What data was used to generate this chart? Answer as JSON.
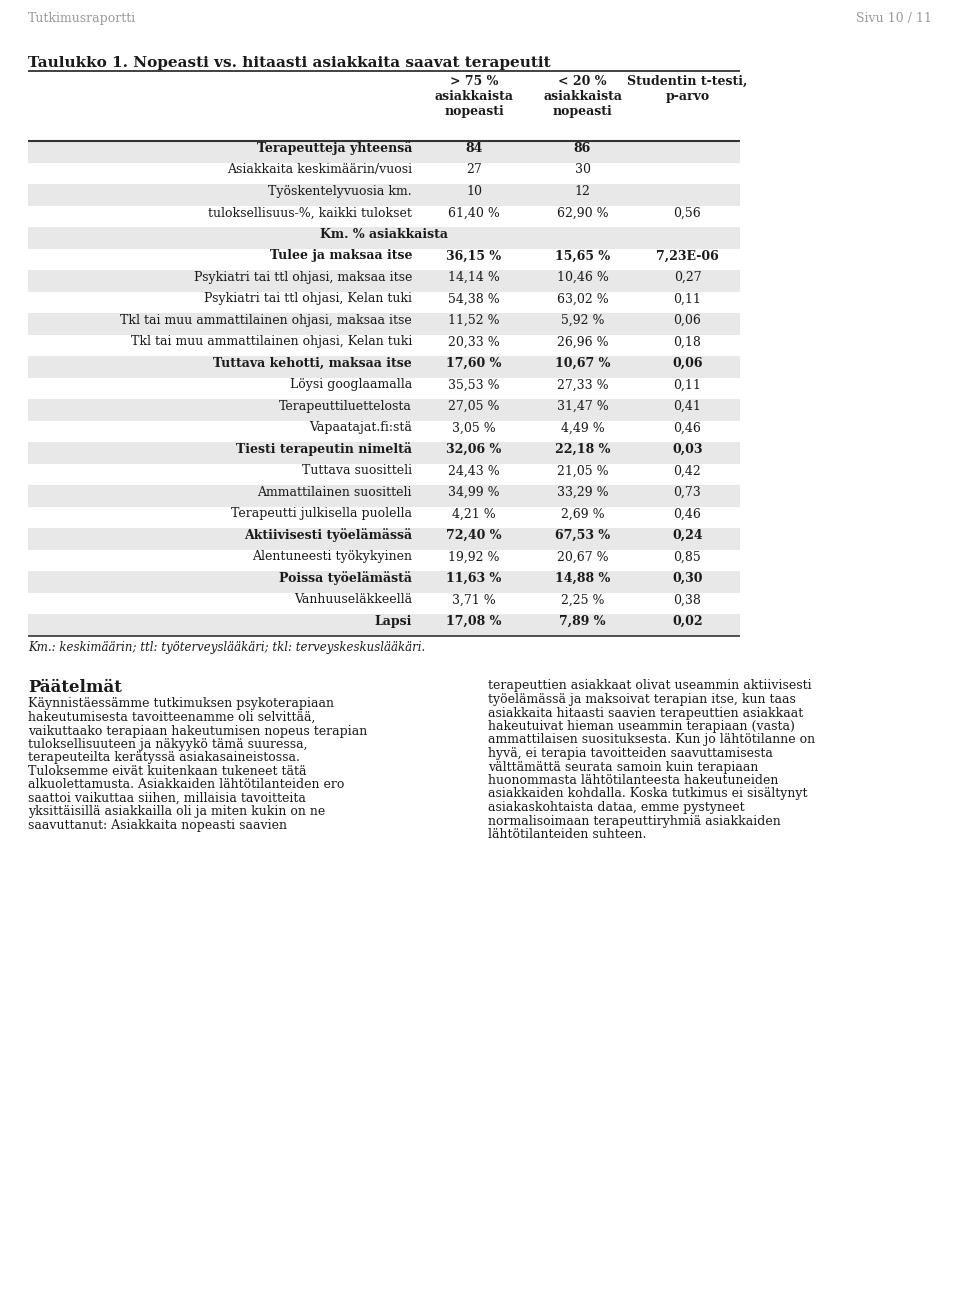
{
  "header_text": "Tutkimusraportti",
  "page_text": "Sivu 10 / 11",
  "table_title": "Taulukko 1. Nopeasti vs. hitaasti asiakkaita saavat terapeutit",
  "col_headers": [
    "",
    "> 75 %\nasiakkaista\nnopeasti",
    "< 20 %\nasiakkaista\nnopeasti",
    "Studentin t-testi,\np-arvo"
  ],
  "rows": [
    {
      "label": "Terapeutteja yhteensä",
      "col1": "84",
      "col2": "86",
      "col3": "",
      "bold": true,
      "shaded": true
    },
    {
      "label": "Asiakkaita keskimäärin/vuosi",
      "col1": "27",
      "col2": "30",
      "col3": "",
      "bold": false,
      "shaded": false
    },
    {
      "label": "Työskentelyvuosia km.",
      "col1": "10",
      "col2": "12",
      "col3": "",
      "bold": false,
      "shaded": true
    },
    {
      "label": "tuloksellisuus-%, kaikki tulokset",
      "col1": "61,40 %",
      "col2": "62,90 %",
      "col3": "0,56",
      "bold": false,
      "shaded": false
    },
    {
      "label": "Km. % asiakkaista",
      "col1": "",
      "col2": "",
      "col3": "",
      "bold": true,
      "shaded": true,
      "span": true
    },
    {
      "label": "Tulee ja maksaa itse",
      "col1": "36,15 %",
      "col2": "15,65 %",
      "col3": "7,23E-06",
      "bold": true,
      "shaded": false
    },
    {
      "label": "Psykiatri tai ttl ohjasi, maksaa itse",
      "col1": "14,14 %",
      "col2": "10,46 %",
      "col3": "0,27",
      "bold": false,
      "shaded": true
    },
    {
      "label": "Psykiatri tai ttl ohjasi, Kelan tuki",
      "col1": "54,38 %",
      "col2": "63,02 %",
      "col3": "0,11",
      "bold": false,
      "shaded": false
    },
    {
      "label": "Tkl tai muu ammattilainen ohjasi, maksaa itse",
      "col1": "11,52 %",
      "col2": "5,92 %",
      "col3": "0,06",
      "bold": false,
      "shaded": true
    },
    {
      "label": "Tkl tai muu ammattilainen ohjasi, Kelan tuki",
      "col1": "20,33 %",
      "col2": "26,96 %",
      "col3": "0,18",
      "bold": false,
      "shaded": false
    },
    {
      "label": "Tuttava kehotti, maksaa itse",
      "col1": "17,60 %",
      "col2": "10,67 %",
      "col3": "0,06",
      "bold": true,
      "shaded": true
    },
    {
      "label": "Löysi googlaamalla",
      "col1": "35,53 %",
      "col2": "27,33 %",
      "col3": "0,11",
      "bold": false,
      "shaded": false
    },
    {
      "label": "Terapeuttiluettelosta",
      "col1": "27,05 %",
      "col2": "31,47 %",
      "col3": "0,41",
      "bold": false,
      "shaded": true
    },
    {
      "label": "Vapaatajat.fi:stä",
      "col1": "3,05 %",
      "col2": "4,49 %",
      "col3": "0,46",
      "bold": false,
      "shaded": false
    },
    {
      "label": "Tiesti terapeutin nimeltä",
      "col1": "32,06 %",
      "col2": "22,18 %",
      "col3": "0,03",
      "bold": true,
      "shaded": true
    },
    {
      "label": "Tuttava suositteli",
      "col1": "24,43 %",
      "col2": "21,05 %",
      "col3": "0,42",
      "bold": false,
      "shaded": false
    },
    {
      "label": "Ammattilainen suositteli",
      "col1": "34,99 %",
      "col2": "33,29 %",
      "col3": "0,73",
      "bold": false,
      "shaded": true
    },
    {
      "label": "Terapeutti julkisella puolella",
      "col1": "4,21 %",
      "col2": "2,69 %",
      "col3": "0,46",
      "bold": false,
      "shaded": false
    },
    {
      "label": "Aktiivisesti työelämässä",
      "col1": "72,40 %",
      "col2": "67,53 %",
      "col3": "0,24",
      "bold": true,
      "shaded": true
    },
    {
      "label": "Alentuneesti työkykyinen",
      "col1": "19,92 %",
      "col2": "20,67 %",
      "col3": "0,85",
      "bold": false,
      "shaded": false
    },
    {
      "label": "Poissa työelämästä",
      "col1": "11,63 %",
      "col2": "14,88 %",
      "col3": "0,30",
      "bold": true,
      "shaded": true
    },
    {
      "label": "Vanhuuseläkkeellä",
      "col1": "3,71 %",
      "col2": "2,25 %",
      "col3": "0,38",
      "bold": false,
      "shaded": false
    },
    {
      "label": "Lapsi",
      "col1": "17,08 %",
      "col2": "7,89 %",
      "col3": "0,02",
      "bold": true,
      "shaded": true
    }
  ],
  "footnote": "Km.: keskimäärin; ttl: työterveyslääkäri; tkl: terveyskeskuslääkäri.",
  "paatelmat_heading": "Päätelmät",
  "body_text_left": "Käynnistäessämme tutkimuksen psykoterapiaan\nhakeutumisesta tavoitteenamme oli selvittää,\nvaikuttaako terapiaan hakeutumisen nopeus terapian\ntuloksellisuuteen ja näkyykö tämä suuressa,\nterapeuteilta kerätyssä asiakasaineistossa.\nTuloksemme eivät kuitenkaan tukeneet tätä\nalkuolettamusta. Asiakkaiden lähtötilanteiden ero\nsaattoi vaikuttaa siihen, millaisia tavoitteita\nyksittäisillä asiakkailla oli ja miten kukin on ne\nsaavuttanut: Asiakkaita nopeasti saavien",
  "body_text_right": "terapeuttien asiakkaat olivat useammin aktiivisesti\ntyöelämässä ja maksoivat terapian itse, kun taas\nasiakkaita hitaasti saavien terapeuttien asiakkaat\nhakeutuivat hieman useammin terapiaan (vasta)\nammattilaisen suosituksesta. Kun jo lähtötilanne on\nhyvä, ei terapia tavoitteiden saavuttamisesta\nvälttämättä seurata samoin kuin terapiaan\nhuonommasta lähtötilanteesta hakeutuneiden\nasiakkaiden kohdalla. Koska tutkimus ei sisältynyt\nasiakaskohtaista dataa, emme pystyneet\nnormalisoimaan terapeuttiryhmiä asiakkaiden\nlähtötilanteiden suhteen.",
  "shaded_color": "#e8e8e8",
  "white_color": "#ffffff",
  "text_color": "#1a1a1a",
  "title_line_color": "#333333",
  "header_gray": "#999999"
}
